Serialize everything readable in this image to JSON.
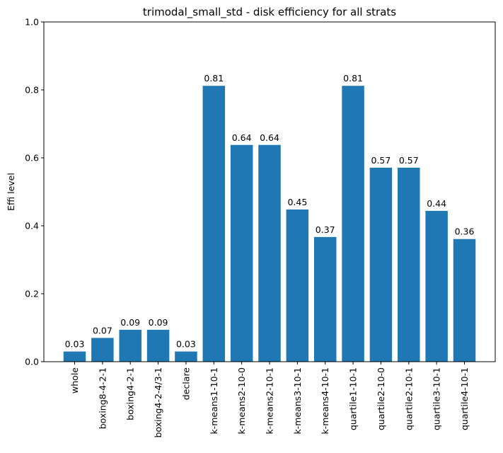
{
  "chart_data": {
    "type": "bar",
    "title": "trimodal_small_std - disk efficiency for all strats",
    "xlabel": "",
    "ylabel": "Effi level",
    "ylim": [
      0,
      1.0
    ],
    "yticks": [
      "0.0",
      "0.2",
      "0.4",
      "0.6",
      "0.8",
      "1.0"
    ],
    "grid": false,
    "bar_color": "#1f77b4",
    "categories": [
      "whole",
      "boxing8-4-2-1",
      "boxing4-2-1",
      "boxing4-2-4/3-1",
      "declare",
      "k-means1-10-1",
      "k-means2-10-0",
      "k-means2-10-1",
      "k-means3-10-1",
      "k-means4-10-1",
      "quartile1-10-1",
      "quartile2-10-0",
      "quartile2-10-1",
      "quartile3-10-1",
      "quartile4-10-1"
    ],
    "values": [
      0.03,
      0.07,
      0.094,
      0.094,
      0.03,
      0.812,
      0.638,
      0.638,
      0.448,
      0.367,
      0.812,
      0.571,
      0.571,
      0.444,
      0.361
    ],
    "value_labels": [
      "0.03",
      "0.07",
      "0.09",
      "0.09",
      "0.03",
      "0.81",
      "0.64",
      "0.64",
      "0.45",
      "0.37",
      "0.81",
      "0.57",
      "0.57",
      "0.44",
      "0.36"
    ]
  }
}
